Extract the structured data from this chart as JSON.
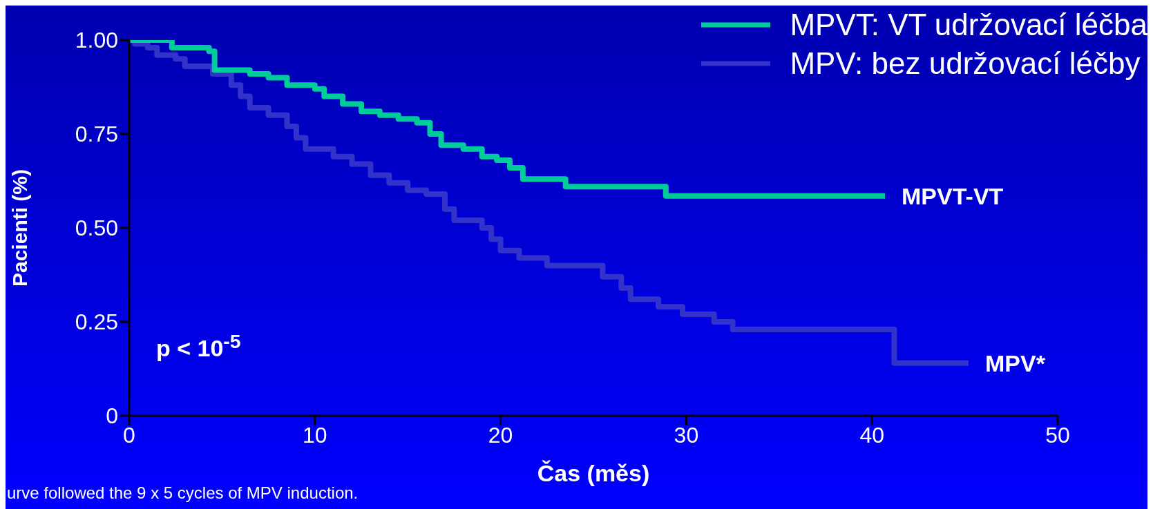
{
  "chart_data": {
    "type": "step",
    "xlabel": "Čas (měs)",
    "ylabel": "Pacienti (%)",
    "xlim": [
      0,
      50
    ],
    "xticks": [
      0,
      10,
      20,
      30,
      40,
      50
    ],
    "ylim": [
      0,
      1
    ],
    "yticks": [
      0,
      {
        "value": 0.25,
        "label": "0.25"
      },
      {
        "value": 0.5,
        "label": "0.50"
      },
      {
        "value": 0.75,
        "label": "0.75"
      },
      {
        "value": 1,
        "label": "1.00"
      }
    ],
    "grid": false,
    "legend": "top right",
    "marker": "none",
    "line_style": "solid",
    "series": [
      {
        "name": "MPVT: VT udržovací léčba",
        "color": "#00cc99",
        "x": [
          0,
          2.3,
          4.3,
          4.6,
          6.5,
          7.5,
          8.5,
          10,
          10.5,
          11.5,
          12.5,
          13.5,
          14.5,
          15.5,
          16.2,
          16.8,
          18,
          19,
          19.8,
          20.5,
          21.2,
          23.5,
          28.9,
          40.7
        ],
        "values": [
          1,
          0.98,
          0.97,
          0.92,
          0.91,
          0.9,
          0.88,
          0.87,
          0.85,
          0.83,
          0.81,
          0.8,
          0.79,
          0.78,
          0.75,
          0.72,
          0.71,
          0.69,
          0.68,
          0.66,
          0.63,
          0.61,
          0.585,
          0.585
        ]
      },
      {
        "name": "MPV: bez udržovací léčby",
        "color": "#3333cc",
        "x": [
          0,
          0.3,
          1,
          1.5,
          2.5,
          3,
          4.5,
          5.5,
          6,
          6.5,
          7.5,
          8.5,
          9,
          9.5,
          11,
          12,
          13,
          14,
          15,
          16,
          17,
          17.5,
          19,
          19.5,
          20,
          21,
          22.5,
          25.5,
          26.5,
          27,
          28.5,
          29.8,
          31.5,
          32.5,
          41.2,
          45.2
        ],
        "values": [
          1,
          0.99,
          0.98,
          0.96,
          0.95,
          0.93,
          0.91,
          0.88,
          0.85,
          0.82,
          0.8,
          0.77,
          0.74,
          0.71,
          0.69,
          0.67,
          0.64,
          0.62,
          0.6,
          0.59,
          0.55,
          0.52,
          0.5,
          0.47,
          0.44,
          0.42,
          0.4,
          0.37,
          0.34,
          0.31,
          0.29,
          0.27,
          0.25,
          0.23,
          0.14,
          0.14
        ]
      }
    ],
    "annotations": [
      {
        "text": "MPVT-VT",
        "x": 40.7,
        "y": 0.585
      },
      {
        "text": "MPV*",
        "x": 45.2,
        "y": 0.14
      },
      "p < 10$^{-5}$",
      "urve followed the 9 x 5 cycles of MPV induction."
    ]
  }
}
